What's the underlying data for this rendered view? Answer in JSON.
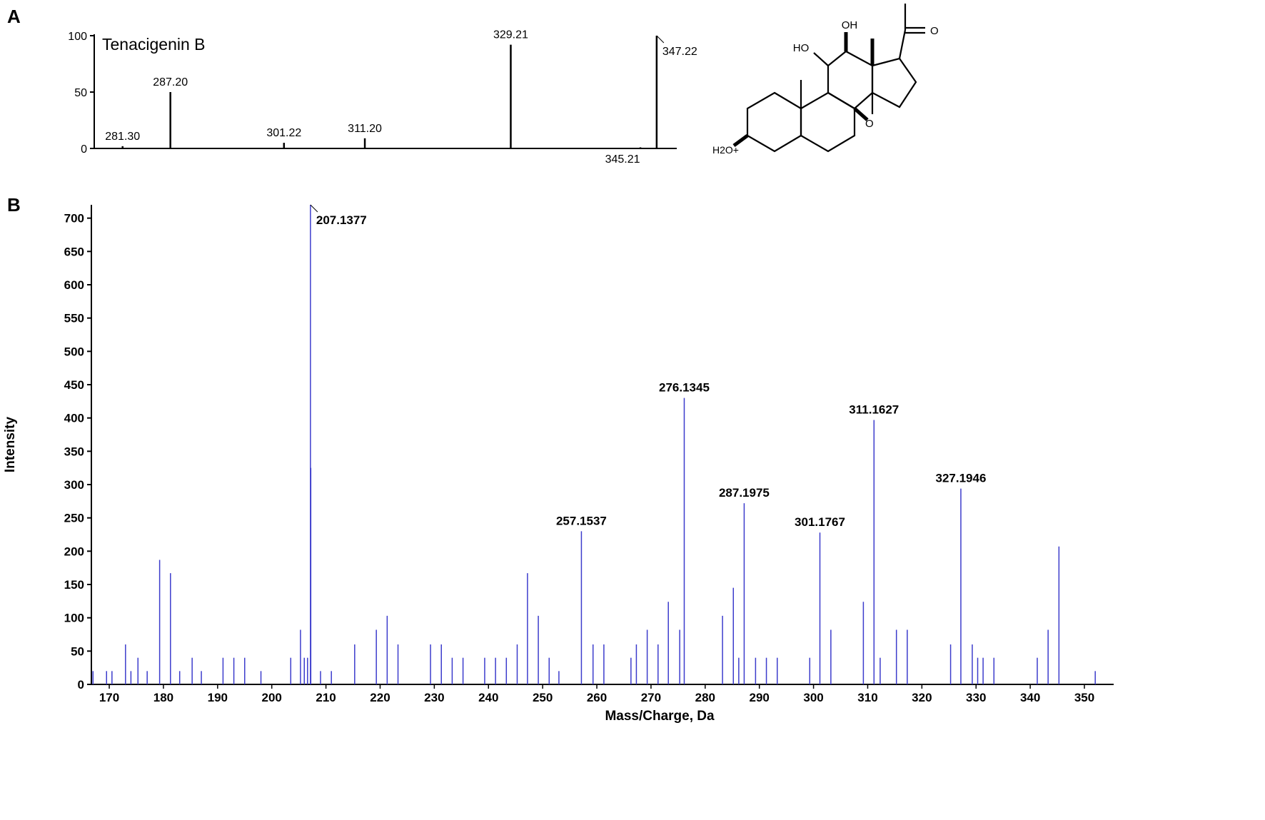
{
  "chart_data": [
    {
      "type": "stick",
      "panel_label": "A",
      "annotation": "Tenacigenin B",
      "x": [
        281.3,
        287.2,
        301.22,
        311.2,
        329.21,
        345.21,
        347.22
      ],
      "x_labels": [
        "281.30",
        "287.20",
        "301.22",
        "311.20",
        "329.21",
        "345.21",
        "347.22"
      ],
      "values": [
        2,
        50,
        5,
        9,
        92,
        1,
        100
      ],
      "color": "#000000",
      "xlim": [
        277.8,
        349.7
      ],
      "ylim": [
        0,
        100
      ],
      "yticks": [
        0,
        50,
        100
      ]
    },
    {
      "type": "stick",
      "panel_label": "B",
      "xlabel": "Mass/Charge, Da",
      "ylabel": "Intensity",
      "x": [
        167,
        169.5,
        170.5,
        173,
        174,
        175.3,
        177,
        179.3,
        181.3,
        183,
        185.3,
        187,
        191,
        193,
        195,
        198,
        203.5,
        205.3,
        206,
        206.6,
        207.1377,
        207.2,
        209,
        211,
        215.3,
        219.3,
        221.3,
        223.3,
        229.3,
        231.3,
        233.3,
        235.3,
        239.3,
        241.3,
        243.3,
        245.3,
        247.2,
        249.2,
        251.2,
        253,
        257.1537,
        259.3,
        261.3,
        266.3,
        267.3,
        269.3,
        271.3,
        273.2,
        275.3,
        276.1345,
        283.2,
        285.2,
        286.2,
        287.1975,
        289.3,
        291.3,
        293.3,
        299.3,
        301.1767,
        303.2,
        309.2,
        311.1627,
        312.3,
        315.3,
        317.3,
        325.3,
        327.1946,
        329.3,
        330.3,
        331.3,
        333.3,
        341.3,
        343.3,
        345.3,
        352
      ],
      "values": [
        20,
        20,
        20,
        60,
        20,
        40,
        20,
        187,
        167,
        20,
        40,
        20,
        40,
        40,
        40,
        20,
        40,
        82,
        40,
        40,
        720,
        325,
        20,
        20,
        60,
        82,
        103,
        60,
        60,
        60,
        40,
        40,
        40,
        40,
        40,
        60,
        167,
        103,
        40,
        20,
        230,
        60,
        60,
        40,
        60,
        82,
        60,
        124,
        82,
        430,
        103,
        145,
        40,
        272,
        40,
        40,
        40,
        40,
        228,
        82,
        124,
        397,
        40,
        82,
        82,
        60,
        294,
        60,
        40,
        40,
        40,
        40,
        82,
        207,
        20
      ],
      "peak_labels": [
        null,
        null,
        null,
        null,
        null,
        null,
        null,
        null,
        null,
        null,
        null,
        null,
        null,
        null,
        null,
        null,
        null,
        null,
        null,
        null,
        "207.1377",
        null,
        null,
        null,
        null,
        null,
        null,
        null,
        null,
        null,
        null,
        null,
        null,
        null,
        null,
        null,
        null,
        null,
        null,
        null,
        "257.1537",
        null,
        null,
        null,
        null,
        null,
        null,
        null,
        null,
        "276.1345",
        null,
        null,
        null,
        "287.1975",
        null,
        null,
        null,
        null,
        "301.1767",
        null,
        null,
        "311.1627",
        null,
        null,
        null,
        null,
        "327.1946",
        null,
        null,
        null,
        null,
        null,
        null,
        null,
        null
      ],
      "color": "#3c3ccc",
      "xlim": [
        166.7,
        355.4
      ],
      "ylim": [
        0,
        720
      ],
      "xticks": [
        170,
        180,
        190,
        200,
        210,
        220,
        230,
        240,
        250,
        260,
        270,
        280,
        290,
        300,
        310,
        320,
        330,
        340,
        350
      ],
      "yticks": [
        0,
        50,
        100,
        150,
        200,
        250,
        300,
        350,
        400,
        450,
        500,
        550,
        600,
        650,
        700
      ]
    }
  ],
  "structure": {
    "labels": [
      "OH",
      "HO",
      "O",
      "O",
      "H2O+"
    ]
  }
}
